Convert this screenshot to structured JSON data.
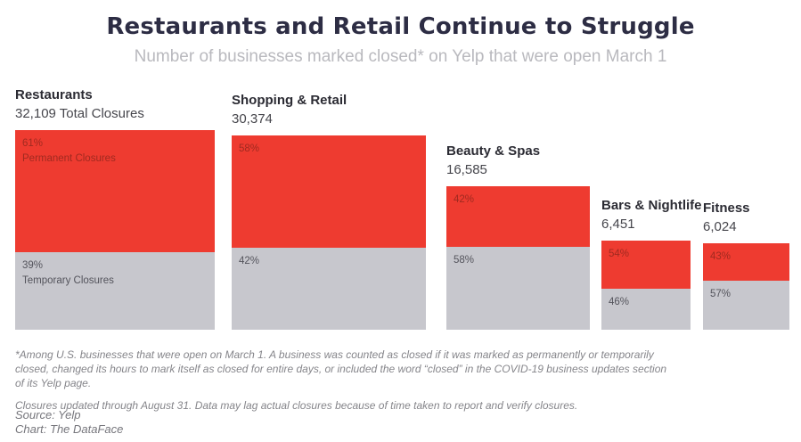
{
  "header": {
    "title": "Restaurants and Retail Continue to Struggle",
    "subtitle": "Number of businesses marked closed* on Yelp that were open March 1"
  },
  "chart_data": {
    "type": "bar",
    "variant": "proportional-stacked-squares",
    "title": "Restaurants and Retail Continue to Struggle",
    "subtitle": "Number of businesses marked closed* on Yelp that were open March 1",
    "categories": [
      "Restaurants",
      "Shopping & Retail",
      "Beauty & Spas",
      "Bars & Nightlife",
      "Fitness"
    ],
    "totals": [
      32109,
      30374,
      16585,
      6451,
      6024
    ],
    "series": [
      {
        "name": "Permanent Closures",
        "unit": "%",
        "values": [
          61,
          58,
          42,
          54,
          43
        ],
        "color": "#ee3b30"
      },
      {
        "name": "Temporary Closures",
        "unit": "%",
        "values": [
          39,
          42,
          58,
          46,
          57
        ],
        "color": "#c7c7cd"
      }
    ],
    "layout": {
      "legend_position": "inside-first-square",
      "bottom_aligned": true,
      "area_proportional_to_total": true,
      "baseline_y": 370,
      "lefts": [
        17,
        260,
        501,
        675,
        789
      ],
      "base_side": 224
    }
  },
  "bars": [
    {
      "category": "Restaurants",
      "total": 32109,
      "total_label": "32,109 Total Closures",
      "permanent": 61,
      "permanent_pct": "61%",
      "permanent_label": "Permanent Closures",
      "temporary_pct": "39%",
      "temporary_label": "Temporary Closures"
    },
    {
      "category": "Shopping & Retail",
      "total": 30374,
      "total_label": "30,374",
      "permanent": 58,
      "permanent_pct": "58%",
      "temporary_pct": "42%"
    },
    {
      "category": "Beauty & Spas",
      "total": 16585,
      "total_label": "16,585",
      "permanent": 42,
      "permanent_pct": "42%",
      "temporary_pct": "58%"
    },
    {
      "category": "Bars & Nightlife",
      "total": 6451,
      "total_label": "6,451",
      "permanent": 54,
      "permanent_pct": "54%",
      "temporary_pct": "46%"
    },
    {
      "category": "Fitness",
      "total": 6024,
      "total_label": "6,024",
      "permanent": 43,
      "permanent_pct": "43%",
      "temporary_pct": "57%"
    }
  ],
  "footnote": {
    "para1": "*Among U.S. businesses that were open on March 1. A business was counted as closed if it was marked as permanently or temporarily closed, changed its hours to mark itself as closed for entire days, or included the word “closed” in the COVID-19 business updates section of its Yelp page.",
    "para2": "Closures updated through August 31. Data may lag actual closures because of time taken to report and verify closures."
  },
  "credits": {
    "source": "Source: Yelp",
    "chart": "Chart: The DataFace"
  },
  "colors": {
    "permanent_fill": "#ee3b30",
    "temporary_fill": "#c7c7cd",
    "permanent_text": "#a12a20",
    "temporary_text": "#54545c",
    "title_text": "#2d2d44",
    "subtitle_text": "#b9b9be"
  }
}
